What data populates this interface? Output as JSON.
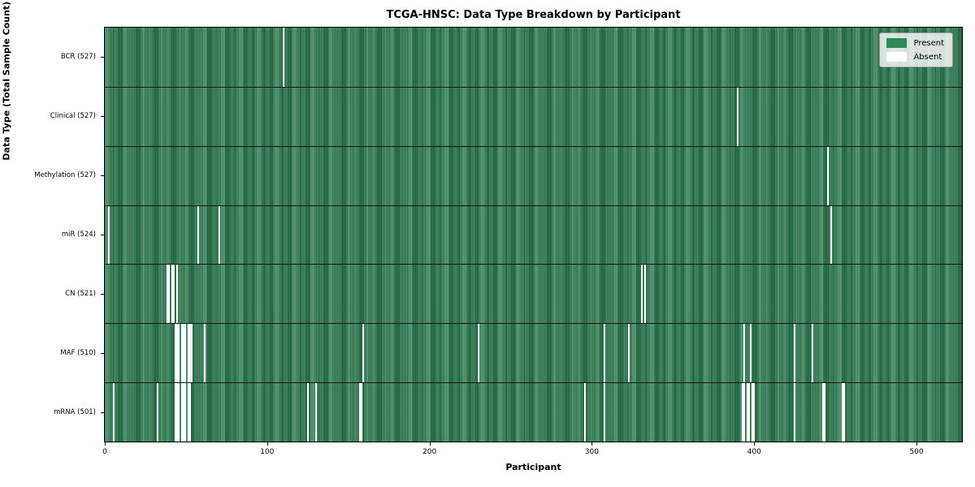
{
  "chart_data": {
    "type": "heatmap",
    "title": "TCGA-HNSC: Data Type Breakdown by Participant",
    "xlabel": "Participant",
    "ylabel": "Data Type (Total Sample Count)",
    "x_ticks": [
      0,
      100,
      200,
      300,
      400,
      500
    ],
    "x_range": [
      -0.5,
      528.5
    ],
    "total_participants": 528,
    "grid": false,
    "legend_position": "upper right",
    "legend": {
      "present": "Present",
      "absent": "Absent"
    },
    "colors": {
      "present": "#2e8b57",
      "absent": "#ffffff",
      "row_divider": "#1a1a1a",
      "legend_background": "rgba(255,255,255,0.8)"
    },
    "rows": [
      {
        "label": "BCR (527)",
        "data_type": "BCR",
        "present_count": 527,
        "absent_participants": [
          110
        ]
      },
      {
        "label": "Clinical (527)",
        "data_type": "Clinical",
        "present_count": 527,
        "absent_participants": [
          390
        ]
      },
      {
        "label": "Methylation (527)",
        "data_type": "Methylation",
        "present_count": 527,
        "absent_participants": [
          446
        ]
      },
      {
        "label": "miR (524)",
        "data_type": "miR",
        "present_count": 524,
        "absent_participants": [
          2,
          57,
          70,
          448
        ]
      },
      {
        "label": "CN (521)",
        "data_type": "CN",
        "present_count": 521,
        "absent_participants": [
          38,
          39,
          41,
          42,
          44,
          331,
          333
        ]
      },
      {
        "label": "MAF (510)",
        "data_type": "MAF",
        "present_count": 510,
        "absent_participants": [
          43,
          44,
          45,
          47,
          48,
          49,
          51,
          52,
          53,
          61,
          159,
          230,
          308,
          323,
          394,
          398,
          425,
          436
        ]
      },
      {
        "label": "mRNA (501)",
        "data_type": "mRNA",
        "present_count": 501,
        "absent_participants": [
          5,
          32,
          43,
          44,
          45,
          47,
          48,
          49,
          51,
          52,
          125,
          130,
          157,
          158,
          296,
          308,
          393,
          394,
          396,
          397,
          399,
          400,
          425,
          443,
          444,
          455,
          456
        ]
      }
    ]
  }
}
